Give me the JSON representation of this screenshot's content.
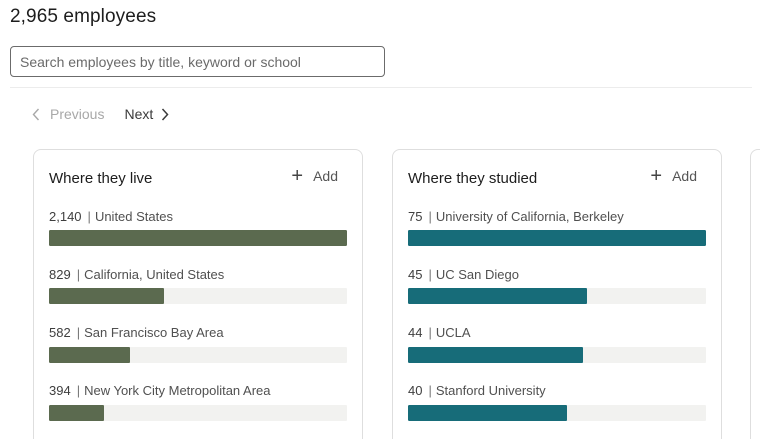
{
  "header": {
    "employee_count": "2,965 employees"
  },
  "search": {
    "placeholder": "Search employees by title, keyword or school",
    "value": ""
  },
  "pagination": {
    "previous_label": "Previous",
    "next_label": "Next",
    "previous_enabled": false,
    "next_enabled": true
  },
  "cards": {
    "live": {
      "title": "Where they live",
      "add_label": "Add",
      "bar_color": "#5b6a4f",
      "max": 2140,
      "items": [
        {
          "count": "2,140",
          "label": "United States",
          "value": 2140
        },
        {
          "count": "829",
          "label": "California, United States",
          "value": 829
        },
        {
          "count": "582",
          "label": "San Francisco Bay Area",
          "value": 582
        },
        {
          "count": "394",
          "label": "New York City Metropolitan Area",
          "value": 394
        }
      ]
    },
    "studied": {
      "title": "Where they studied",
      "add_label": "Add",
      "bar_color": "#176c79",
      "max": 75,
      "items": [
        {
          "count": "75",
          "label": "University of California, Berkeley",
          "value": 75
        },
        {
          "count": "45",
          "label": "UC San Diego",
          "value": 45
        },
        {
          "count": "44",
          "label": "UCLA",
          "value": 44
        },
        {
          "count": "40",
          "label": "Stanford University",
          "value": 40
        }
      ]
    }
  }
}
